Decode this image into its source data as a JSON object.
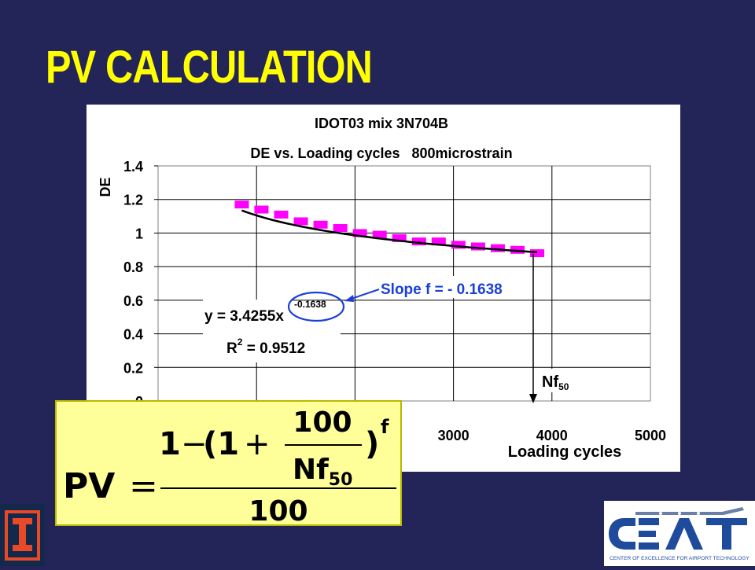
{
  "slide": {
    "title": "PV CALCULATION"
  },
  "chart_data": {
    "type": "scatter",
    "title_line1": "IDOT03 mix 3N704B",
    "title_line2": "DE vs. Loading cycles   800microstrain",
    "xlabel": "Loading cycles",
    "ylabel": "DE",
    "xlim": [
      0,
      5000
    ],
    "ylim": [
      0,
      1.4
    ],
    "x_ticks": [
      "3000",
      "4000",
      "5000"
    ],
    "y_ticks": [
      "1.4",
      "1.2",
      "1",
      "0.8",
      "0.6",
      "0.4",
      "0.2",
      "0"
    ],
    "grid": true,
    "series": [
      {
        "color": "#ff00ff",
        "x": [
          850,
          1050,
          1250,
          1450,
          1650,
          1850,
          2050,
          2250,
          2450,
          2650,
          2850,
          3050,
          3250,
          3450,
          3650,
          3850
        ],
        "y": [
          1.17,
          1.14,
          1.11,
          1.07,
          1.05,
          1.03,
          1.0,
          0.99,
          0.97,
          0.95,
          0.95,
          0.93,
          0.92,
          0.91,
          0.9,
          0.88
        ]
      }
    ],
    "trendline": {
      "a": 3.4255,
      "b": -0.1638,
      "x_start": 850,
      "x_end": 3850,
      "color": "#000000"
    },
    "annotations": {
      "equation_prefix": "y = 3.4255x",
      "equation_exponent": "-0.1638",
      "r2_prefix": "R",
      "r2_sup": "2",
      "r2_value": " = 0.9512",
      "slope_label": "Slope f = - 0.1638",
      "nf_label": "Nf",
      "nf_sub": "50"
    }
  },
  "formula": {
    "lhs": "PV",
    "equals": "=",
    "one": "1",
    "minus": "−",
    "paren_open": "(1",
    "plus": "+",
    "hundred": "100",
    "nf": "Nf",
    "nf_sub": "50",
    "paren_close": ")",
    "exponent": "f",
    "denominator": "100"
  },
  "logos": {
    "ceat_text": "CENTER OF EXCELLENCE FOR AIRPORT TECHNOLOGY"
  }
}
